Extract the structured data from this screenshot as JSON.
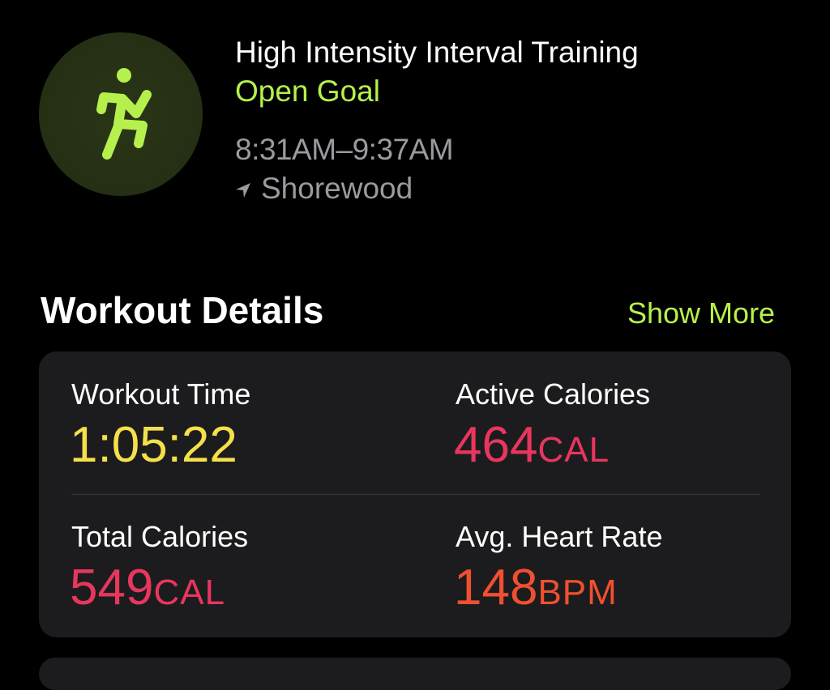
{
  "workout": {
    "icon": "figure-hiit-icon",
    "title": "High Intensity Interval Training",
    "goal": "Open Goal",
    "time_range": "8:31AM–9:37AM",
    "location_icon": "location-arrow-icon",
    "location": "Shorewood"
  },
  "details": {
    "heading": "Workout Details",
    "show_more": "Show More",
    "metrics": [
      {
        "label": "Workout Time",
        "value": "1:05:22",
        "unit": "",
        "color": "#f5e04a"
      },
      {
        "label": "Active Calories",
        "value": "464",
        "unit": "CAL",
        "color": "#e8365e"
      },
      {
        "label": "Total Calories",
        "value": "549",
        "unit": "CAL",
        "color": "#e8365e"
      },
      {
        "label": "Avg. Heart Rate",
        "value": "148",
        "unit": "BPM",
        "color": "#f0502f"
      }
    ]
  },
  "colors": {
    "accent": "#b6f04c",
    "secondary_text": "#9a9a9f",
    "card": "#1c1c1e"
  }
}
